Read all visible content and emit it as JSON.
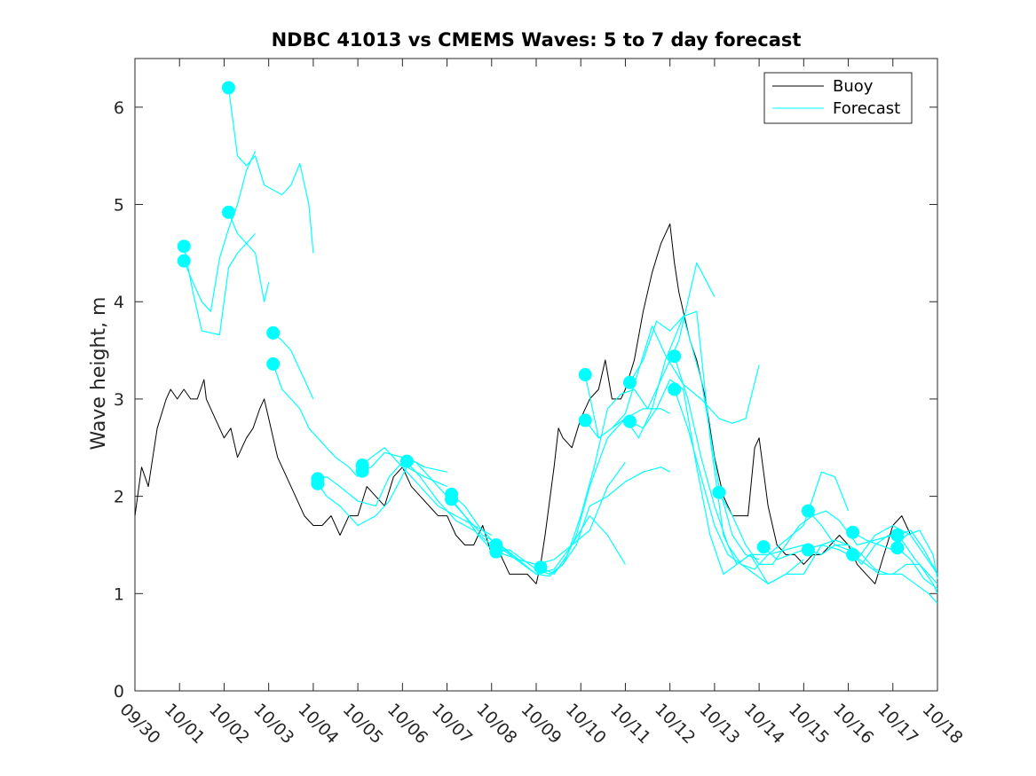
{
  "chart_data": {
    "type": "line",
    "title": "NDBC 41013 vs CMEMS Waves: 5 to 7 day forecast",
    "xlabel": "",
    "ylabel": "Wave height, m",
    "xlim": [
      0,
      18
    ],
    "ylim": [
      0,
      6.5
    ],
    "xticks": [
      0,
      1,
      2,
      3,
      4,
      5,
      6,
      7,
      8,
      9,
      10,
      11,
      12,
      13,
      14,
      15,
      16,
      17,
      18
    ],
    "xticklabels": [
      "09/30",
      "10/01",
      "10/02",
      "10/03",
      "10/04",
      "10/05",
      "10/06",
      "10/07",
      "10/08",
      "10/09",
      "10/10",
      "10/11",
      "10/12",
      "10/13",
      "10/14",
      "10/15",
      "10/16",
      "10/17",
      "10/18"
    ],
    "yticks": [
      0,
      1,
      2,
      3,
      4,
      5,
      6
    ],
    "yticklabels": [
      "0",
      "1",
      "2",
      "3",
      "4",
      "5",
      "6"
    ],
    "legend": {
      "position": "top-right",
      "entries": [
        {
          "label": "Buoy",
          "color": "#000000"
        },
        {
          "label": "Forecast",
          "color": "#00ffff"
        }
      ]
    },
    "colors": {
      "buoy": "#000000",
      "forecast": "#00ffff"
    },
    "series": [
      {
        "name": "Buoy",
        "x": [
          0,
          0.15,
          0.3,
          0.5,
          0.7,
          0.8,
          0.95,
          1.1,
          1.25,
          1.4,
          1.55,
          1.6,
          1.8,
          2.0,
          2.15,
          2.3,
          2.5,
          2.65,
          2.8,
          2.9,
          3.0,
          3.2,
          3.4,
          3.6,
          3.8,
          4.0,
          4.2,
          4.4,
          4.6,
          4.8,
          5.0,
          5.2,
          5.4,
          5.6,
          5.8,
          6.0,
          6.2,
          6.4,
          6.6,
          6.8,
          7.0,
          7.2,
          7.4,
          7.6,
          7.8,
          8.0,
          8.2,
          8.4,
          8.6,
          8.8,
          9.0,
          9.1,
          9.2,
          9.4,
          9.5,
          9.6,
          9.8,
          10.0,
          10.2,
          10.4,
          10.55,
          10.7,
          10.9,
          11.0,
          11.2,
          11.4,
          11.6,
          11.8,
          12.0,
          12.1,
          12.2,
          12.3,
          12.45,
          12.6,
          12.8,
          13.0,
          13.2,
          13.4,
          13.6,
          13.75,
          13.9,
          14.0,
          14.2,
          14.4,
          14.6,
          14.8,
          15.0,
          15.2,
          15.4,
          15.6,
          15.8,
          16.0,
          16.2,
          16.4,
          16.6,
          16.8,
          17.0,
          17.2,
          17.4
        ],
        "y": [
          1.8,
          2.3,
          2.1,
          2.7,
          3.0,
          3.1,
          3.0,
          3.1,
          3.0,
          3.0,
          3.2,
          3.0,
          2.8,
          2.6,
          2.7,
          2.4,
          2.6,
          2.7,
          2.9,
          3.0,
          2.8,
          2.4,
          2.2,
          2.0,
          1.8,
          1.7,
          1.7,
          1.8,
          1.6,
          1.8,
          1.8,
          2.1,
          2.0,
          1.9,
          2.2,
          2.3,
          2.1,
          2.0,
          1.9,
          1.8,
          1.8,
          1.6,
          1.5,
          1.5,
          1.7,
          1.4,
          1.4,
          1.2,
          1.2,
          1.2,
          1.1,
          1.3,
          1.6,
          2.3,
          2.7,
          2.6,
          2.5,
          2.8,
          3.0,
          3.1,
          3.4,
          3.0,
          3.0,
          3.1,
          3.4,
          3.9,
          4.3,
          4.6,
          4.8,
          4.4,
          4.1,
          3.9,
          3.6,
          3.4,
          3.0,
          2.4,
          2.0,
          1.8,
          1.8,
          1.8,
          2.5,
          2.6,
          1.9,
          1.5,
          1.4,
          1.4,
          1.3,
          1.4,
          1.4,
          1.5,
          1.6,
          1.5,
          1.3,
          1.2,
          1.1,
          1.4,
          1.7,
          1.8,
          1.6
        ]
      },
      {
        "name": "Forecast",
        "x": [
          1.1,
          1.3,
          1.5,
          1.7,
          1.9,
          2.1,
          2.3,
          2.5,
          2.7
        ],
        "y": [
          4.57,
          4.1,
          3.7,
          3.68,
          3.66,
          4.35,
          4.5,
          4.6,
          4.7
        ]
      },
      {
        "name": "Forecast",
        "x": [
          1.1,
          1.3,
          1.5,
          1.7,
          1.9,
          2.1,
          2.3,
          2.5,
          2.7
        ],
        "y": [
          4.42,
          4.2,
          4.0,
          3.9,
          4.45,
          4.75,
          5.0,
          5.35,
          5.55
        ]
      },
      {
        "name": "Forecast",
        "x": [
          2.1,
          2.3,
          2.5,
          2.7,
          2.9,
          3.1,
          3.3,
          3.5,
          3.7,
          3.9,
          4.0
        ],
        "y": [
          6.2,
          5.5,
          5.4,
          5.5,
          5.2,
          5.15,
          5.1,
          5.2,
          5.42,
          5.0,
          4.5
        ]
      },
      {
        "name": "Forecast",
        "x": [
          2.1,
          2.3,
          2.5,
          2.7,
          2.9,
          3.0
        ],
        "y": [
          4.92,
          4.7,
          4.6,
          4.5,
          4.0,
          4.2
        ]
      },
      {
        "name": "Forecast",
        "x": [
          3.1,
          3.3,
          3.5,
          3.7,
          3.9,
          4.0
        ],
        "y": [
          3.68,
          3.6,
          3.5,
          3.3,
          3.1,
          3.0
        ]
      },
      {
        "name": "Forecast",
        "x": [
          3.1,
          3.3,
          3.5,
          3.7,
          3.9,
          4.2,
          4.5,
          4.8,
          5.0
        ],
        "y": [
          3.36,
          3.1,
          3.0,
          2.9,
          2.7,
          2.55,
          2.4,
          2.3,
          2.2
        ]
      },
      {
        "name": "Forecast",
        "x": [
          4.1,
          4.3,
          4.6,
          5.0,
          5.4,
          5.7,
          6.1,
          6.5,
          7.0
        ],
        "y": [
          2.18,
          2.2,
          2.1,
          1.95,
          1.9,
          2.2,
          2.4,
          2.3,
          2.25
        ]
      },
      {
        "name": "Forecast",
        "x": [
          4.1,
          4.3,
          4.6,
          5.0,
          5.4,
          5.7,
          6.1,
          6.5,
          7.0
        ],
        "y": [
          2.13,
          2.0,
          1.9,
          1.7,
          1.8,
          1.95,
          2.3,
          2.2,
          2.1
        ]
      },
      {
        "name": "Forecast",
        "x": [
          5.1,
          5.3,
          5.6,
          6.0,
          6.4,
          6.8,
          7.2,
          7.6,
          8.0
        ],
        "y": [
          2.32,
          2.4,
          2.5,
          2.3,
          2.1,
          1.9,
          1.8,
          1.7,
          1.6
        ]
      },
      {
        "name": "Forecast",
        "x": [
          5.1,
          5.3,
          5.6,
          6.0,
          6.4,
          6.8,
          7.2,
          7.6,
          8.0
        ],
        "y": [
          2.26,
          2.3,
          2.45,
          2.4,
          2.2,
          1.95,
          1.75,
          1.65,
          1.5
        ]
      },
      {
        "name": "Forecast",
        "x": [
          6.1,
          6.3,
          6.6,
          7.0,
          7.4,
          7.8,
          8.2,
          8.6,
          9.0
        ],
        "y": [
          2.36,
          2.35,
          2.2,
          2.0,
          1.8,
          1.6,
          1.5,
          1.35,
          1.3
        ]
      },
      {
        "name": "Forecast",
        "x": [
          7.1,
          7.4,
          7.7,
          8.0,
          8.3,
          8.6,
          9.0,
          9.4,
          9.8,
          10.2,
          10.6,
          11.0
        ],
        "y": [
          2.02,
          1.9,
          1.7,
          1.55,
          1.45,
          1.35,
          1.3,
          1.35,
          1.5,
          1.65,
          2.1,
          2.35
        ]
      },
      {
        "name": "Forecast",
        "x": [
          7.1,
          7.4,
          7.7,
          8.0,
          8.3,
          8.6,
          9.0,
          9.4,
          9.8,
          10.2,
          10.6,
          11.0
        ],
        "y": [
          1.97,
          1.8,
          1.6,
          1.45,
          1.4,
          1.35,
          1.2,
          1.25,
          1.5,
          1.8,
          1.6,
          1.3
        ]
      },
      {
        "name": "Forecast",
        "x": [
          8.1,
          8.4,
          8.7,
          9.0,
          9.3,
          9.6,
          9.9,
          10.2,
          10.6,
          11.0,
          11.4,
          11.8,
          12.0
        ],
        "y": [
          1.5,
          1.4,
          1.3,
          1.2,
          1.18,
          1.3,
          1.5,
          1.9,
          2.0,
          2.15,
          2.25,
          2.3,
          2.25
        ]
      },
      {
        "name": "Forecast",
        "x": [
          8.1,
          8.4,
          8.7,
          9.0,
          9.3,
          9.6,
          9.9,
          10.2,
          10.6,
          11.0,
          11.4,
          11.8,
          12.0
        ],
        "y": [
          1.43,
          1.45,
          1.35,
          1.25,
          1.2,
          1.3,
          1.6,
          2.1,
          2.6,
          2.8,
          2.9,
          2.9,
          2.85
        ]
      },
      {
        "name": "Forecast",
        "x": [
          9.1,
          9.4,
          9.7,
          10.0,
          10.3,
          10.6,
          10.9,
          11.2,
          11.5,
          11.8,
          12.2,
          12.6,
          13.0
        ],
        "y": [
          1.27,
          1.2,
          1.4,
          1.8,
          2.3,
          2.9,
          3.05,
          3.1,
          2.9,
          3.2,
          3.6,
          4.4,
          4.05
        ]
      },
      {
        "name": "Forecast",
        "x": [
          10.1,
          10.4,
          10.7,
          11.0,
          11.3,
          11.6,
          11.9,
          12.3,
          12.7,
          13.1,
          13.4,
          13.7,
          14.0
        ],
        "y": [
          3.25,
          2.6,
          2.7,
          2.85,
          3.3,
          3.75,
          3.45,
          3.15,
          3.0,
          2.8,
          2.75,
          2.8,
          3.35
        ]
      },
      {
        "name": "Forecast",
        "x": [
          10.1,
          10.4,
          10.7,
          11.0,
          11.3,
          11.6,
          11.9,
          12.3,
          12.7,
          13.1,
          13.4,
          13.7,
          14.0
        ],
        "y": [
          2.78,
          2.6,
          2.7,
          2.8,
          2.6,
          2.9,
          3.4,
          3.85,
          3.2,
          2.1,
          1.6,
          1.4,
          1.35
        ]
      },
      {
        "name": "Forecast",
        "x": [
          11.1,
          11.4,
          11.7,
          12.0,
          12.3,
          12.6,
          12.9,
          13.2,
          13.5,
          13.8,
          14.2,
          14.6,
          15.0
        ],
        "y": [
          3.17,
          3.4,
          3.8,
          3.7,
          3.85,
          3.9,
          2.6,
          1.6,
          1.3,
          1.4,
          1.4,
          1.45,
          1.5
        ]
      },
      {
        "name": "Forecast",
        "x": [
          11.1,
          11.4,
          11.7,
          12.0,
          12.3,
          12.6,
          12.9,
          13.2,
          13.5,
          13.8,
          14.2,
          14.6,
          15.0
        ],
        "y": [
          2.77,
          2.7,
          2.9,
          3.2,
          3.1,
          2.3,
          1.6,
          1.2,
          1.3,
          1.4,
          1.1,
          1.2,
          1.35
        ]
      },
      {
        "name": "Forecast",
        "x": [
          12.1,
          12.4,
          12.7,
          13.0,
          13.3,
          13.6,
          13.9,
          14.2,
          14.6,
          15.0,
          15.4,
          15.7,
          16.0
        ],
        "y": [
          3.44,
          3.0,
          2.4,
          1.9,
          1.5,
          1.3,
          1.25,
          1.4,
          1.55,
          1.7,
          2.25,
          2.2,
          1.85
        ]
      },
      {
        "name": "Forecast",
        "x": [
          12.1,
          12.4,
          12.7,
          13.0,
          13.3,
          13.6,
          13.9,
          14.2,
          14.6,
          15.0,
          15.4,
          15.7,
          16.0
        ],
        "y": [
          3.1,
          2.7,
          2.2,
          1.7,
          1.4,
          1.3,
          1.2,
          1.1,
          1.2,
          1.2,
          1.5,
          1.55,
          1.5
        ]
      },
      {
        "name": "Forecast",
        "x": [
          13.1,
          13.4,
          13.7,
          14.0,
          14.3,
          14.6,
          14.9,
          15.2,
          15.5,
          15.8,
          16.2,
          16.6,
          17.0
        ],
        "y": [
          2.04,
          1.8,
          1.5,
          1.3,
          1.3,
          1.5,
          1.7,
          1.8,
          1.85,
          1.75,
          1.5,
          1.55,
          1.6
        ]
      },
      {
        "name": "Forecast",
        "x": [
          14.1,
          14.4,
          14.7,
          15.0,
          15.4,
          15.8,
          16.2,
          16.6,
          17.0,
          17.4,
          17.7,
          18.0
        ],
        "y": [
          1.48,
          1.35,
          1.4,
          1.45,
          1.5,
          1.45,
          1.35,
          1.6,
          1.7,
          1.6,
          1.4,
          1.2
        ]
      },
      {
        "name": "Forecast",
        "x": [
          15.1,
          15.4,
          15.7,
          16.0,
          16.3,
          16.6,
          16.9,
          17.2,
          17.5,
          17.8,
          18.0
        ],
        "y": [
          1.85,
          1.7,
          1.5,
          1.45,
          1.3,
          1.5,
          1.6,
          1.55,
          1.35,
          1.2,
          1.1
        ]
      },
      {
        "name": "Forecast",
        "x": [
          15.1,
          15.4,
          15.7,
          16.0,
          16.3,
          16.6,
          16.9,
          17.2,
          17.5,
          17.8,
          18.0
        ],
        "y": [
          1.45,
          1.4,
          1.5,
          1.5,
          1.4,
          1.25,
          1.2,
          1.2,
          1.1,
          1.0,
          0.9
        ]
      },
      {
        "name": "Forecast",
        "x": [
          16.1,
          16.4,
          16.7,
          17.0,
          17.3,
          17.6,
          17.9,
          18.0
        ],
        "y": [
          1.63,
          1.55,
          1.5,
          1.45,
          1.6,
          1.65,
          1.4,
          1.15
        ]
      },
      {
        "name": "Forecast",
        "x": [
          16.1,
          16.4,
          16.7,
          17.0,
          17.3,
          17.6,
          17.9,
          18.0
        ],
        "y": [
          1.4,
          1.3,
          1.2,
          1.2,
          1.3,
          1.3,
          1.1,
          1.0
        ]
      },
      {
        "name": "Forecast",
        "x": [
          17.1,
          17.4,
          17.7,
          18.0
        ],
        "y": [
          1.6,
          1.65,
          1.45,
          1.2
        ]
      },
      {
        "name": "Forecast",
        "x": [
          17.1,
          17.4,
          17.7,
          18.0
        ],
        "y": [
          1.47,
          1.35,
          1.15,
          1.05
        ]
      }
    ]
  }
}
